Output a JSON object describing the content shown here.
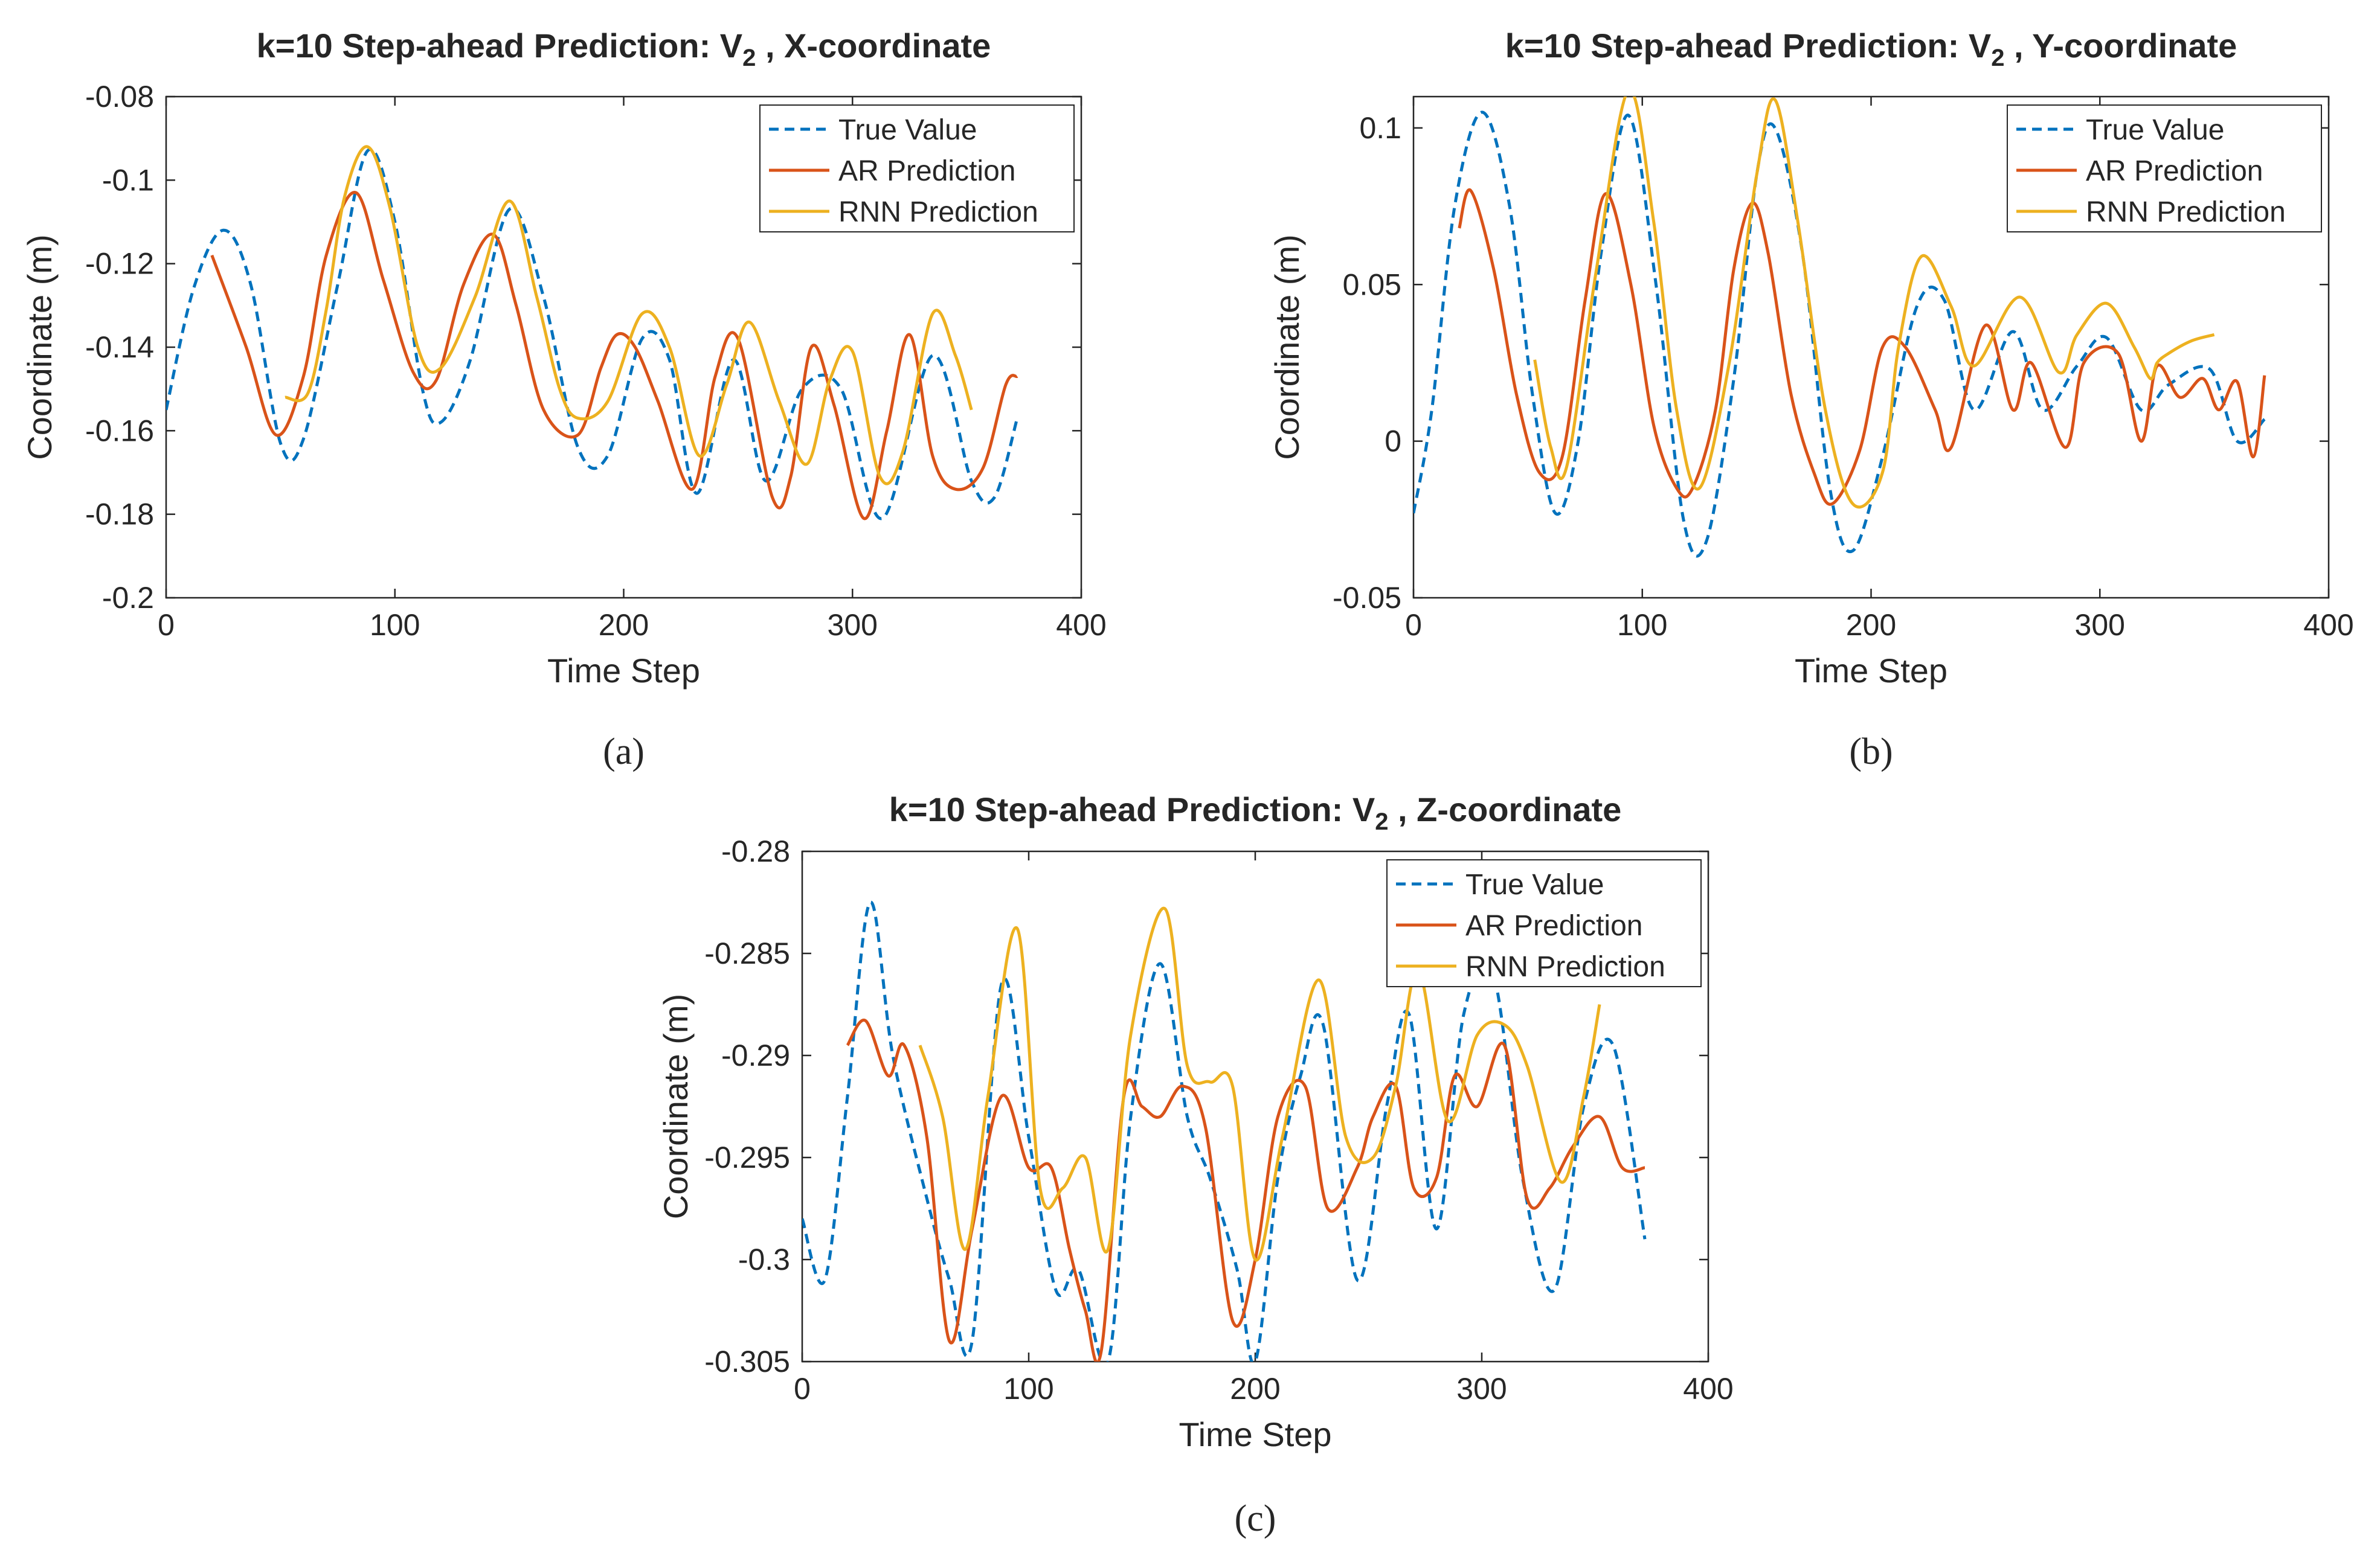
{
  "colors": {
    "true_value": "#0072BD",
    "ar": "#D95319",
    "rnn": "#EDB120",
    "axis": "#262626"
  },
  "chart_data": [
    {
      "type": "line",
      "id": "a",
      "title_main": "k=10 Step-ahead Prediction: V",
      "title_sub": "2",
      "title_rest": " , X-coordinate",
      "xlabel": "Time Step",
      "ylabel": "Coordinate (m)",
      "xlim": [
        0,
        400
      ],
      "ylim": [
        -0.2,
        -0.08
      ],
      "xticks": [
        0,
        100,
        200,
        300,
        400
      ],
      "xtick_labels": [
        "0",
        "100",
        "200",
        "300",
        "400"
      ],
      "yticks": [
        -0.2,
        -0.18,
        -0.16,
        -0.14,
        -0.12,
        -0.1,
        -0.08
      ],
      "ytick_labels": [
        "-0.2",
        "-0.18",
        "-0.16",
        "-0.14",
        "-0.12",
        "-0.1",
        "-0.08"
      ],
      "caption": "(a)",
      "legend_position": "top-right",
      "series": [
        {
          "name": "True Value",
          "style": "dashed",
          "color_key": "true_value",
          "x": [
            0,
            12,
            25,
            37,
            50,
            60,
            75,
            88,
            100,
            112,
            120,
            133,
            150,
            165,
            180,
            193,
            208,
            220,
            232,
            248,
            262,
            278,
            295,
            313,
            335,
            352,
            362,
            372
          ],
          "y": [
            -0.155,
            -0.126,
            -0.112,
            -0.125,
            -0.163,
            -0.162,
            -0.125,
            -0.093,
            -0.11,
            -0.15,
            -0.158,
            -0.143,
            -0.107,
            -0.128,
            -0.164,
            -0.166,
            -0.138,
            -0.143,
            -0.175,
            -0.143,
            -0.172,
            -0.15,
            -0.15,
            -0.181,
            -0.142,
            -0.172,
            -0.176,
            -0.157
          ]
        },
        {
          "name": "AR Prediction",
          "style": "solid",
          "color_key": "ar",
          "x": [
            20,
            35,
            48,
            60,
            70,
            83,
            95,
            108,
            118,
            130,
            143,
            153,
            165,
            180,
            190,
            197,
            205,
            215,
            230,
            240,
            250,
            265,
            273,
            282,
            292,
            305,
            315,
            325,
            335,
            345,
            357,
            367,
            372
          ],
          "y": [
            -0.118,
            -0.14,
            -0.161,
            -0.147,
            -0.118,
            -0.103,
            -0.124,
            -0.146,
            -0.148,
            -0.125,
            -0.113,
            -0.13,
            -0.155,
            -0.161,
            -0.145,
            -0.137,
            -0.14,
            -0.153,
            -0.174,
            -0.147,
            -0.138,
            -0.176,
            -0.171,
            -0.14,
            -0.154,
            -0.181,
            -0.16,
            -0.137,
            -0.166,
            -0.174,
            -0.169,
            -0.149,
            -0.147
          ]
        },
        {
          "name": "RNN Prediction",
          "style": "solid",
          "color_key": "rnn",
          "x": [
            52,
            62,
            70,
            78,
            88,
            98,
            110,
            120,
            135,
            150,
            162,
            172,
            180,
            193,
            208,
            220,
            233,
            245,
            255,
            268,
            280,
            290,
            300,
            312,
            322,
            335,
            345,
            352
          ],
          "y": [
            -0.152,
            -0.151,
            -0.131,
            -0.104,
            -0.092,
            -0.107,
            -0.14,
            -0.145,
            -0.128,
            -0.105,
            -0.128,
            -0.15,
            -0.157,
            -0.153,
            -0.132,
            -0.14,
            -0.166,
            -0.149,
            -0.134,
            -0.153,
            -0.168,
            -0.148,
            -0.141,
            -0.171,
            -0.165,
            -0.132,
            -0.142,
            -0.155
          ]
        }
      ]
    },
    {
      "type": "line",
      "id": "b",
      "title_main": "k=10 Step-ahead Prediction: V",
      "title_sub": "2",
      "title_rest": " , Y-coordinate",
      "xlabel": "Time Step",
      "ylabel": "Coordinate (m)",
      "xlim": [
        0,
        400
      ],
      "ylim": [
        -0.05,
        0.11
      ],
      "xticks": [
        0,
        100,
        200,
        300,
        400
      ],
      "xtick_labels": [
        "0",
        "100",
        "200",
        "300",
        "400"
      ],
      "yticks": [
        -0.05,
        0,
        0.05,
        0.1
      ],
      "ytick_labels": [
        "-0.05",
        "0",
        "0.05",
        "0.1"
      ],
      "caption": "(b)",
      "legend_position": "top-right",
      "series": [
        {
          "name": "True Value",
          "style": "dashed",
          "color_key": "true_value",
          "x": [
            0,
            8,
            18,
            30,
            42,
            52,
            62,
            72,
            82,
            94,
            106,
            118,
            128,
            140,
            150,
            158,
            170,
            182,
            192,
            205,
            220,
            232,
            245,
            262,
            275,
            290,
            303,
            318,
            330,
            348,
            360,
            372
          ],
          "y": [
            -0.023,
            0.01,
            0.075,
            0.105,
            0.075,
            0.015,
            -0.023,
            0.0,
            0.06,
            0.104,
            0.05,
            -0.025,
            -0.032,
            0.02,
            0.085,
            0.1,
            0.06,
            -0.015,
            -0.035,
            -0.005,
            0.043,
            0.045,
            0.01,
            0.035,
            0.01,
            0.024,
            0.033,
            0.01,
            0.018,
            0.023,
            0.0,
            0.007
          ]
        },
        {
          "name": "AR Prediction",
          "style": "solid",
          "color_key": "ar",
          "x": [
            20,
            25,
            35,
            45,
            55,
            65,
            75,
            84,
            95,
            105,
            115,
            122,
            132,
            140,
            148,
            155,
            165,
            175,
            183,
            195,
            205,
            215,
            228,
            235,
            250,
            262,
            270,
            285,
            293,
            308,
            318,
            325,
            335,
            345,
            352,
            360,
            367,
            372
          ],
          "y": [
            0.068,
            0.08,
            0.055,
            0.015,
            -0.01,
            -0.005,
            0.045,
            0.079,
            0.05,
            0.005,
            -0.015,
            -0.015,
            0.01,
            0.055,
            0.076,
            0.06,
            0.015,
            -0.01,
            -0.02,
            -0.003,
            0.03,
            0.03,
            0.01,
            -0.002,
            0.037,
            0.01,
            0.025,
            -0.002,
            0.025,
            0.028,
            0.0,
            0.024,
            0.014,
            0.02,
            0.01,
            0.019,
            -0.005,
            0.021
          ]
        },
        {
          "name": "RNN Prediction",
          "style": "solid",
          "color_key": "rnn",
          "x": [
            53,
            60,
            67,
            80,
            94,
            105,
            115,
            125,
            138,
            150,
            158,
            168,
            180,
            192,
            205,
            212,
            222,
            235,
            245,
            265,
            282,
            290,
            303,
            315,
            322,
            325,
            330,
            340,
            350
          ],
          "y": [
            0.026,
            -0.002,
            -0.008,
            0.055,
            0.112,
            0.07,
            0.01,
            -0.015,
            0.025,
            0.085,
            0.109,
            0.07,
            0.01,
            -0.02,
            -0.01,
            0.03,
            0.059,
            0.043,
            0.024,
            0.046,
            0.022,
            0.034,
            0.044,
            0.03,
            0.02,
            0.025,
            0.028,
            0.032,
            0.034
          ]
        }
      ]
    },
    {
      "type": "line",
      "id": "c",
      "title_main": "k=10 Step-ahead Prediction: V",
      "title_sub": "2",
      "title_rest": " , Z-coordinate",
      "xlabel": "Time Step",
      "ylabel": "Coordinate (m)",
      "xlim": [
        0,
        400
      ],
      "ylim": [
        -0.305,
        -0.28
      ],
      "xticks": [
        0,
        100,
        200,
        300,
        400
      ],
      "xtick_labels": [
        "0",
        "100",
        "200",
        "300",
        "400"
      ],
      "yticks": [
        -0.305,
        -0.3,
        -0.295,
        -0.29,
        -0.285,
        -0.28
      ],
      "ytick_labels": [
        "-0.305",
        "-0.3",
        "-0.295",
        "-0.29",
        "-0.285",
        "-0.28"
      ],
      "caption": "(c)",
      "legend_position": "top-right",
      "series": [
        {
          "name": "True Value",
          "style": "dashed",
          "color_key": "true_value",
          "x": [
            0,
            10,
            20,
            30,
            40,
            55,
            65,
            75,
            88,
            100,
            112,
            122,
            135,
            145,
            158,
            170,
            180,
            192,
            200,
            210,
            220,
            230,
            245,
            258,
            268,
            280,
            292,
            305,
            318,
            332,
            345,
            358,
            372
          ],
          "y": [
            -0.298,
            -0.301,
            -0.292,
            -0.2825,
            -0.29,
            -0.297,
            -0.301,
            -0.304,
            -0.2865,
            -0.294,
            -0.3015,
            -0.3005,
            -0.305,
            -0.293,
            -0.2855,
            -0.293,
            -0.296,
            -0.3005,
            -0.305,
            -0.296,
            -0.291,
            -0.2885,
            -0.301,
            -0.2925,
            -0.288,
            -0.2985,
            -0.288,
            -0.286,
            -0.296,
            -0.3015,
            -0.2925,
            -0.2895,
            -0.299
          ]
        },
        {
          "name": "AR Prediction",
          "style": "solid",
          "color_key": "ar",
          "x": [
            20,
            28,
            38,
            45,
            55,
            65,
            75,
            88,
            100,
            110,
            118,
            125,
            132,
            142,
            150,
            158,
            168,
            178,
            190,
            200,
            210,
            222,
            232,
            245,
            252,
            262,
            270,
            280,
            288,
            298,
            310,
            320,
            330,
            340,
            352,
            362,
            372
          ],
          "y": [
            -0.2895,
            -0.2883,
            -0.291,
            -0.2895,
            -0.294,
            -0.304,
            -0.2985,
            -0.292,
            -0.2955,
            -0.2955,
            -0.2995,
            -0.3025,
            -0.3045,
            -0.292,
            -0.2925,
            -0.293,
            -0.2915,
            -0.2935,
            -0.303,
            -0.3,
            -0.293,
            -0.2915,
            -0.2975,
            -0.2955,
            -0.293,
            -0.2915,
            -0.2965,
            -0.296,
            -0.291,
            -0.2925,
            -0.2895,
            -0.297,
            -0.2965,
            -0.2945,
            -0.293,
            -0.2955,
            -0.2955
          ]
        },
        {
          "name": "RNN Prediction",
          "style": "solid",
          "color_key": "rnn",
          "x": [
            52,
            62,
            72,
            82,
            95,
            105,
            115,
            125,
            135,
            145,
            160,
            170,
            180,
            190,
            200,
            212,
            228,
            240,
            252,
            262,
            272,
            285,
            298,
            310,
            320,
            335,
            345,
            352
          ],
          "y": [
            -0.2895,
            -0.293,
            -0.2995,
            -0.292,
            -0.2838,
            -0.2965,
            -0.2965,
            -0.295,
            -0.2995,
            -0.289,
            -0.2828,
            -0.2905,
            -0.2913,
            -0.2915,
            -0.3,
            -0.294,
            -0.2863,
            -0.294,
            -0.295,
            -0.2915,
            -0.2858,
            -0.2932,
            -0.289,
            -0.2885,
            -0.2905,
            -0.2962,
            -0.292,
            -0.2875
          ]
        }
      ]
    }
  ]
}
